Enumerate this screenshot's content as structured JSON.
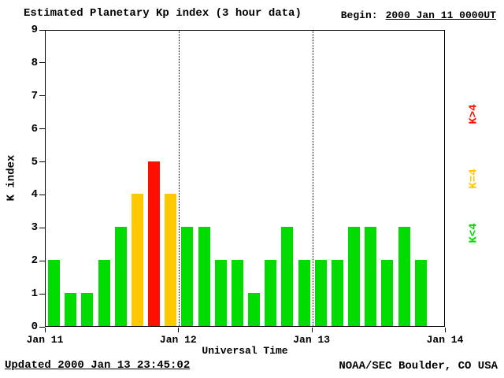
{
  "header": {
    "title": "Estimated Planetary Kp index (3 hour data)",
    "begin_label": "Begin:",
    "begin_value": "2000 Jan 11 0000UT"
  },
  "footer": {
    "updated": "Updated 2000 Jan 13 23:45:02",
    "source": "NOAA/SEC Boulder, CO USA"
  },
  "chart_data": {
    "type": "bar",
    "title": "Estimated Planetary Kp index (3 hour data)",
    "xlabel": "Universal Time",
    "ylabel": "K index",
    "ylim": [
      0,
      9
    ],
    "yticks": [
      0,
      1,
      2,
      3,
      4,
      5,
      6,
      7,
      8,
      9
    ],
    "xticks": [
      "Jan 11",
      "Jan 12",
      "Jan 13",
      "Jan 14"
    ],
    "bars_per_day": 8,
    "total_slots": 24,
    "hours_per_bar": 3,
    "values": [
      2,
      1,
      1,
      2,
      3,
      4,
      5,
      4,
      3,
      3,
      2,
      2,
      1,
      2,
      3,
      2,
      2,
      2,
      3,
      3,
      2,
      3,
      2
    ],
    "colors": {
      "low": "#00dc00",
      "mid": "#ffc800",
      "high": "#ff0f00"
    },
    "color_rule": "K<4 green, K=4 yellow, K>4 red",
    "legend": [
      {
        "label": "K>4",
        "color": "#ff0f00"
      },
      {
        "label": "K=4",
        "color": "#ffc800"
      },
      {
        "label": "K<4",
        "color": "#00dc00"
      }
    ],
    "grid": "off",
    "legend_position": "right-vertical",
    "day_boundaries": [
      "Jan 12",
      "Jan 13"
    ]
  }
}
